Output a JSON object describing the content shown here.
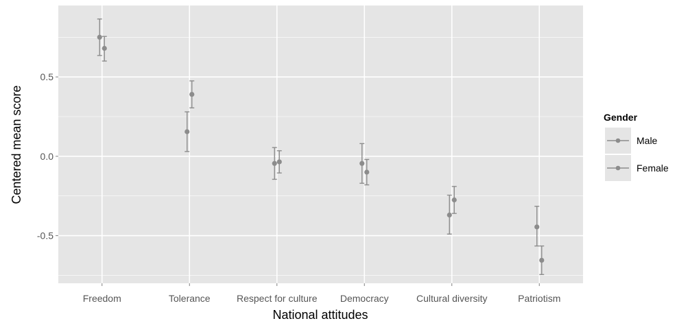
{
  "chart_data": {
    "type": "scatter",
    "subtype": "point-range",
    "xlabel": "National attitudes",
    "ylabel": "Centered mean score",
    "categories": [
      "Freedom",
      "Tolerance",
      "Respect for culture",
      "Democracy",
      "Cultural diversity",
      "Patriotism"
    ],
    "ylim": [
      -0.8,
      0.95
    ],
    "yticks": [
      -0.5,
      0.0,
      0.5
    ],
    "ytick_labels": [
      "-0.5",
      "0.0",
      "0.5"
    ],
    "grid": true,
    "legend": {
      "title": "Gender",
      "placement": "right",
      "entries": [
        "Male",
        "Female"
      ]
    },
    "colors": {
      "panel": "#e5e5e5",
      "grid": "#ffffff",
      "marker": "#8c8c8c"
    },
    "series": [
      {
        "name": "Male",
        "values": [
          0.75,
          0.155,
          -0.045,
          -0.045,
          -0.37,
          -0.445
        ],
        "lower": [
          0.635,
          0.03,
          -0.145,
          -0.17,
          -0.49,
          -0.565
        ],
        "upper": [
          0.865,
          0.28,
          0.055,
          0.08,
          -0.245,
          -0.315
        ]
      },
      {
        "name": "Female",
        "values": [
          0.68,
          0.39,
          -0.035,
          -0.1,
          -0.275,
          -0.655
        ],
        "lower": [
          0.6,
          0.305,
          -0.105,
          -0.18,
          -0.36,
          -0.745
        ],
        "upper": [
          0.755,
          0.475,
          0.035,
          -0.02,
          -0.19,
          -0.565
        ]
      }
    ]
  }
}
